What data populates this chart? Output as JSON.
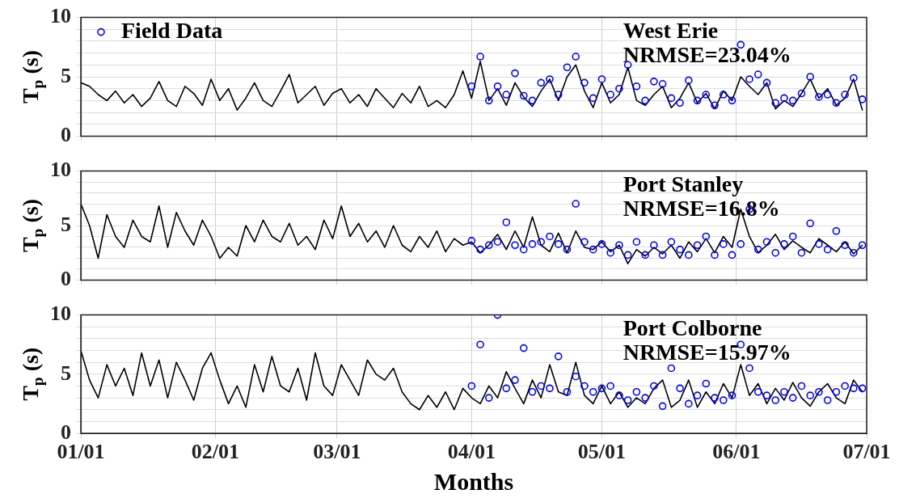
{
  "chart_data": [
    {
      "type": "line",
      "ylabel": "T$_{p}$ (s)",
      "annotations": [
        "West Erie",
        "NRMSE=23.04%"
      ],
      "legend": "top left",
      "grid": true,
      "tick_labels": "y",
      "marker": "none",
      "line_style": "solid",
      "xlim": [
        "--01-01",
        "--07-01"
      ],
      "xticks": [
        {
          "value": "--01-01",
          "label": null
        },
        {
          "value": "--02-01",
          "label": null
        },
        {
          "value": "--03-01",
          "label": null
        },
        {
          "value": "--04-01",
          "label": null
        },
        {
          "value": "--05-01",
          "label": null
        },
        {
          "value": "--06-01",
          "label": null
        },
        {
          "value": "--07-01",
          "label": null
        }
      ],
      "ylim": [
        0,
        10
      ],
      "yticks": [
        0,
        {
          "value": 1,
          "label": null
        },
        {
          "value": 2,
          "label": null
        },
        {
          "value": 3,
          "label": null
        },
        {
          "value": 4,
          "label": null
        },
        5,
        {
          "value": 6,
          "label": null
        },
        {
          "value": 7,
          "label": null
        },
        {
          "value": 8,
          "label": null
        },
        {
          "value": 9,
          "label": null
        },
        10
      ],
      "x": [
        "--01-01",
        "--01-03",
        "--01-05",
        "--01-07",
        "--01-09",
        "--01-11",
        "--01-13",
        "--01-15",
        "--01-17",
        "--01-19",
        "--01-21",
        "--01-23",
        "--01-25",
        "--01-27",
        "--01-29",
        "--01-31",
        "--02-02",
        "--02-04",
        "--02-06",
        "--02-08",
        "--02-10",
        "--02-12",
        "--02-14",
        "--02-16",
        "--02-18",
        "--02-20",
        "--02-22",
        "--02-24",
        "--02-26",
        "--02-28",
        "--03-02",
        "--03-04",
        "--03-06",
        "--03-08",
        "--03-10",
        "--03-12",
        "--03-14",
        "--03-16",
        "--03-18",
        "--03-20",
        "--03-22",
        "--03-24",
        "--03-26",
        "--03-28",
        "--03-30",
        "--04-01",
        "--04-03",
        "--04-05",
        "--04-07",
        "--04-09",
        "--04-11",
        "--04-13",
        "--04-15",
        "--04-17",
        "--04-19",
        "--04-21",
        "--04-23",
        "--04-25",
        "--04-27",
        "--04-29",
        "--05-01",
        "--05-03",
        "--05-05",
        "--05-07",
        "--05-09",
        "--05-11",
        "--05-13",
        "--05-15",
        "--05-17",
        "--05-19",
        "--05-21",
        "--05-23",
        "--05-25",
        "--05-27",
        "--05-29",
        "--05-31",
        "--06-02",
        "--06-04",
        "--06-06",
        "--06-08",
        "--06-10",
        "--06-12",
        "--06-14",
        "--06-16",
        "--06-18",
        "--06-20",
        "--06-22",
        "--06-24",
        "--06-26",
        "--06-28",
        "--06-30"
      ],
      "series": [
        {
          "type": "line",
          "color": "#000000",
          "values": [
            4.5,
            4.2,
            3.5,
            3.0,
            3.8,
            2.8,
            3.5,
            2.5,
            3.2,
            4.6,
            3.0,
            2.5,
            4.2,
            3.6,
            2.6,
            4.8,
            3.0,
            4.0,
            2.2,
            3.2,
            4.5,
            3.0,
            2.5,
            3.8,
            5.2,
            2.8,
            3.5,
            4.2,
            2.6,
            3.6,
            4.0,
            2.8,
            3.5,
            2.5,
            4.0,
            3.2,
            2.4,
            3.6,
            2.8,
            4.2,
            2.5,
            3.0,
            2.4,
            3.5,
            5.5,
            3.2,
            6.3,
            3.0,
            4.0,
            2.6,
            4.5,
            3.3,
            2.5,
            3.8,
            4.8,
            3.0,
            5.0,
            6.0,
            3.8,
            2.4,
            4.5,
            2.8,
            3.5,
            5.8,
            3.0,
            2.6,
            3.5,
            4.2,
            2.4,
            3.2,
            4.5,
            2.8,
            3.6,
            2.3,
            3.8,
            3.0,
            5.0,
            4.2,
            3.5,
            4.5,
            2.3,
            3.0,
            2.5,
            3.6,
            4.8,
            3.2,
            4.0,
            2.6,
            3.2,
            4.8,
            2.2
          ]
        },
        {
          "type": "scatter",
          "name": "Field Data",
          "color": "#0000ff",
          "marker": "circle",
          "values": [
            null,
            null,
            null,
            null,
            null,
            null,
            null,
            null,
            null,
            null,
            null,
            null,
            null,
            null,
            null,
            null,
            null,
            null,
            null,
            null,
            null,
            null,
            null,
            null,
            null,
            null,
            null,
            null,
            null,
            null,
            null,
            null,
            null,
            null,
            null,
            null,
            null,
            null,
            null,
            null,
            null,
            null,
            null,
            null,
            null,
            4.2,
            6.7,
            3.0,
            4.2,
            3.5,
            5.3,
            3.4,
            3.0,
            4.5,
            4.8,
            3.5,
            5.8,
            6.7,
            4.5,
            3.2,
            4.8,
            3.5,
            4.0,
            6.0,
            4.2,
            3.0,
            4.6,
            4.4,
            3.2,
            2.8,
            4.7,
            3.0,
            3.5,
            2.6,
            3.5,
            3.0,
            7.7,
            4.8,
            5.2,
            4.5,
            2.8,
            3.2,
            3.0,
            3.6,
            5.0,
            3.3,
            3.5,
            2.8,
            3.5,
            4.9,
            3.1
          ]
        }
      ]
    },
    {
      "type": "line",
      "ylabel": "T$_{p}$ (s)",
      "annotations": [
        "Port Stanley",
        "NRMSE=16.8%"
      ],
      "grid": true,
      "tick_labels": "y",
      "marker": "none",
      "line_style": "solid",
      "xlim": [
        "--01-01",
        "--07-01"
      ],
      "xticks": [
        {
          "value": "--01-01",
          "label": null
        },
        {
          "value": "--02-01",
          "label": null
        },
        {
          "value": "--03-01",
          "label": null
        },
        {
          "value": "--04-01",
          "label": null
        },
        {
          "value": "--05-01",
          "label": null
        },
        {
          "value": "--06-01",
          "label": null
        },
        {
          "value": "--07-01",
          "label": null
        }
      ],
      "ylim": [
        0,
        10
      ],
      "yticks": [
        0,
        {
          "value": 1,
          "label": null
        },
        {
          "value": 2,
          "label": null
        },
        {
          "value": 3,
          "label": null
        },
        {
          "value": 4,
          "label": null
        },
        5,
        {
          "value": 6,
          "label": null
        },
        {
          "value": 7,
          "label": null
        },
        {
          "value": 8,
          "label": null
        },
        {
          "value": 9,
          "label": null
        },
        10
      ],
      "x": [
        "--01-01",
        "--01-03",
        "--01-05",
        "--01-07",
        "--01-09",
        "--01-11",
        "--01-13",
        "--01-15",
        "--01-17",
        "--01-19",
        "--01-21",
        "--01-23",
        "--01-25",
        "--01-27",
        "--01-29",
        "--01-31",
        "--02-02",
        "--02-04",
        "--02-06",
        "--02-08",
        "--02-10",
        "--02-12",
        "--02-14",
        "--02-16",
        "--02-18",
        "--02-20",
        "--02-22",
        "--02-24",
        "--02-26",
        "--02-28",
        "--03-02",
        "--03-04",
        "--03-06",
        "--03-08",
        "--03-10",
        "--03-12",
        "--03-14",
        "--03-16",
        "--03-18",
        "--03-20",
        "--03-22",
        "--03-24",
        "--03-26",
        "--03-28",
        "--03-30",
        "--04-01",
        "--04-03",
        "--04-05",
        "--04-07",
        "--04-09",
        "--04-11",
        "--04-13",
        "--04-15",
        "--04-17",
        "--04-19",
        "--04-21",
        "--04-23",
        "--04-25",
        "--04-27",
        "--04-29",
        "--05-01",
        "--05-03",
        "--05-05",
        "--05-07",
        "--05-09",
        "--05-11",
        "--05-13",
        "--05-15",
        "--05-17",
        "--05-19",
        "--05-21",
        "--05-23",
        "--05-25",
        "--05-27",
        "--05-29",
        "--05-31",
        "--06-02",
        "--06-04",
        "--06-06",
        "--06-08",
        "--06-10",
        "--06-12",
        "--06-14",
        "--06-16",
        "--06-18",
        "--06-20",
        "--06-22",
        "--06-24",
        "--06-26",
        "--06-28",
        "--06-30"
      ],
      "series": [
        {
          "type": "line",
          "color": "#000000",
          "values": [
            7.0,
            5.0,
            2.0,
            6.0,
            4.0,
            3.0,
            5.5,
            4.0,
            3.5,
            6.8,
            3.0,
            6.2,
            4.5,
            3.2,
            5.5,
            4.0,
            2.0,
            3.0,
            2.2,
            5.0,
            3.5,
            5.5,
            4.0,
            3.5,
            5.2,
            3.2,
            4.0,
            2.8,
            5.5,
            3.8,
            6.8,
            4.0,
            5.2,
            3.5,
            4.5,
            3.0,
            5.0,
            3.2,
            2.6,
            4.0,
            3.0,
            4.5,
            2.6,
            3.8,
            3.2,
            3.5,
            2.5,
            3.2,
            4.2,
            2.8,
            4.5,
            3.0,
            5.8,
            3.2,
            2.6,
            4.3,
            2.5,
            4.5,
            3.0,
            2.8,
            3.5,
            2.6,
            3.2,
            1.5,
            2.8,
            2.2,
            3.0,
            2.4,
            3.2,
            2.0,
            3.5,
            2.6,
            3.8,
            2.5,
            4.0,
            3.0,
            6.5,
            4.0,
            2.5,
            3.2,
            4.2,
            2.8,
            3.6,
            3.0,
            2.5,
            3.8,
            3.2,
            2.6,
            3.5,
            2.4,
            3.2
          ]
        },
        {
          "type": "scatter",
          "color": "#0000ff",
          "marker": "circle",
          "values": [
            null,
            null,
            null,
            null,
            null,
            null,
            null,
            null,
            null,
            null,
            null,
            null,
            null,
            null,
            null,
            null,
            null,
            null,
            null,
            null,
            null,
            null,
            null,
            null,
            null,
            null,
            null,
            null,
            null,
            null,
            null,
            null,
            null,
            null,
            null,
            null,
            null,
            null,
            null,
            null,
            null,
            null,
            null,
            null,
            null,
            3.6,
            2.8,
            3.2,
            3.5,
            5.3,
            3.2,
            2.8,
            3.3,
            3.5,
            4.0,
            3.3,
            2.8,
            7.0,
            3.5,
            2.8,
            3.3,
            2.5,
            3.2,
            2.3,
            3.5,
            2.3,
            3.2,
            2.3,
            3.5,
            2.8,
            2.3,
            3.2,
            4.0,
            2.3,
            3.3,
            2.3,
            3.3,
            6.5,
            2.8,
            3.5,
            2.5,
            3.3,
            4.0,
            2.5,
            5.2,
            3.3,
            2.8,
            4.5,
            3.2,
            2.5,
            3.2
          ]
        }
      ]
    },
    {
      "type": "line",
      "ylabel": "T$_{p}$ (s)",
      "xlabel": "Months",
      "annotations": [
        "Port Colborne",
        "NRMSE=15.97%"
      ],
      "grid": true,
      "marker": "none",
      "line_style": "solid",
      "xlim": [
        "--01-01",
        "--07-01"
      ],
      "xticks": [
        {
          "value": "--01-01",
          "label": "01/01"
        },
        {
          "value": "--02-01",
          "label": "02/01"
        },
        {
          "value": "--03-01",
          "label": "03/01"
        },
        {
          "value": "--04-01",
          "label": "04/01"
        },
        {
          "value": "--05-01",
          "label": "05/01"
        },
        {
          "value": "--06-01",
          "label": "06/01"
        },
        {
          "value": "--07-01",
          "label": "07/01"
        }
      ],
      "ylim": [
        0,
        10
      ],
      "yticks": [
        0,
        {
          "value": 1,
          "label": null
        },
        {
          "value": 2,
          "label": null
        },
        {
          "value": 3,
          "label": null
        },
        {
          "value": 4,
          "label": null
        },
        5,
        {
          "value": 6,
          "label": null
        },
        {
          "value": 7,
          "label": null
        },
        {
          "value": 8,
          "label": null
        },
        {
          "value": 9,
          "label": null
        },
        10
      ],
      "x": [
        "--01-01",
        "--01-03",
        "--01-05",
        "--01-07",
        "--01-09",
        "--01-11",
        "--01-13",
        "--01-15",
        "--01-17",
        "--01-19",
        "--01-21",
        "--01-23",
        "--01-25",
        "--01-27",
        "--01-29",
        "--01-31",
        "--02-02",
        "--02-04",
        "--02-06",
        "--02-08",
        "--02-10",
        "--02-12",
        "--02-14",
        "--02-16",
        "--02-18",
        "--02-20",
        "--02-22",
        "--02-24",
        "--02-26",
        "--02-28",
        "--03-02",
        "--03-04",
        "--03-06",
        "--03-08",
        "--03-10",
        "--03-12",
        "--03-14",
        "--03-16",
        "--03-18",
        "--03-20",
        "--03-22",
        "--03-24",
        "--03-26",
        "--03-28",
        "--03-30",
        "--04-01",
        "--04-03",
        "--04-05",
        "--04-07",
        "--04-09",
        "--04-11",
        "--04-13",
        "--04-15",
        "--04-17",
        "--04-19",
        "--04-21",
        "--04-23",
        "--04-25",
        "--04-27",
        "--04-29",
        "--05-01",
        "--05-03",
        "--05-05",
        "--05-07",
        "--05-09",
        "--05-11",
        "--05-13",
        "--05-15",
        "--05-17",
        "--05-19",
        "--05-21",
        "--05-23",
        "--05-25",
        "--05-27",
        "--05-29",
        "--05-31",
        "--06-02",
        "--06-04",
        "--06-06",
        "--06-08",
        "--06-10",
        "--06-12",
        "--06-14",
        "--06-16",
        "--06-18",
        "--06-20",
        "--06-22",
        "--06-24",
        "--06-26",
        "--06-28",
        "--06-30"
      ],
      "series": [
        {
          "type": "line",
          "color": "#000000",
          "values": [
            7.0,
            4.5,
            3.0,
            5.8,
            4.0,
            5.5,
            3.2,
            6.8,
            4.0,
            6.2,
            3.0,
            6.0,
            4.5,
            2.8,
            5.5,
            6.8,
            4.5,
            2.5,
            4.0,
            2.2,
            5.8,
            3.5,
            6.5,
            4.0,
            3.5,
            5.5,
            2.8,
            6.8,
            4.0,
            3.2,
            5.8,
            4.5,
            3.2,
            6.2,
            5.0,
            4.5,
            5.5,
            3.5,
            2.5,
            2.0,
            3.2,
            2.2,
            3.5,
            2.0,
            3.8,
            3.0,
            2.5,
            4.0,
            3.0,
            5.2,
            3.8,
            2.5,
            4.5,
            3.0,
            5.8,
            3.5,
            3.2,
            6.0,
            3.2,
            2.5,
            4.0,
            2.5,
            3.5,
            2.2,
            3.0,
            2.5,
            3.8,
            4.5,
            2.2,
            2.8,
            4.5,
            2.2,
            3.5,
            2.5,
            4.2,
            3.0,
            5.8,
            3.2,
            4.2,
            2.5,
            3.8,
            2.8,
            4.3,
            3.0,
            2.3,
            3.5,
            4.2,
            3.0,
            2.5,
            4.5,
            3.5
          ]
        },
        {
          "type": "scatter",
          "color": "#0000ff",
          "marker": "circle",
          "values": [
            null,
            null,
            null,
            null,
            null,
            null,
            null,
            null,
            null,
            null,
            null,
            null,
            null,
            null,
            null,
            null,
            null,
            null,
            null,
            null,
            null,
            null,
            null,
            null,
            null,
            null,
            null,
            null,
            null,
            null,
            null,
            null,
            null,
            null,
            null,
            null,
            null,
            null,
            null,
            null,
            null,
            null,
            null,
            null,
            null,
            4.0,
            7.5,
            3.0,
            10.0,
            3.8,
            4.5,
            7.2,
            3.5,
            4.0,
            3.8,
            6.5,
            3.5,
            4.8,
            4.0,
            3.5,
            3.8,
            4.0,
            3.2,
            2.8,
            3.5,
            3.0,
            4.0,
            2.3,
            5.5,
            3.8,
            2.5,
            3.2,
            4.2,
            3.0,
            2.8,
            3.2,
            7.5,
            5.5,
            3.5,
            3.2,
            2.8,
            3.5,
            3.0,
            4.0,
            3.2,
            3.5,
            2.8,
            3.5,
            4.0,
            3.8,
            3.8
          ]
        }
      ]
    }
  ]
}
